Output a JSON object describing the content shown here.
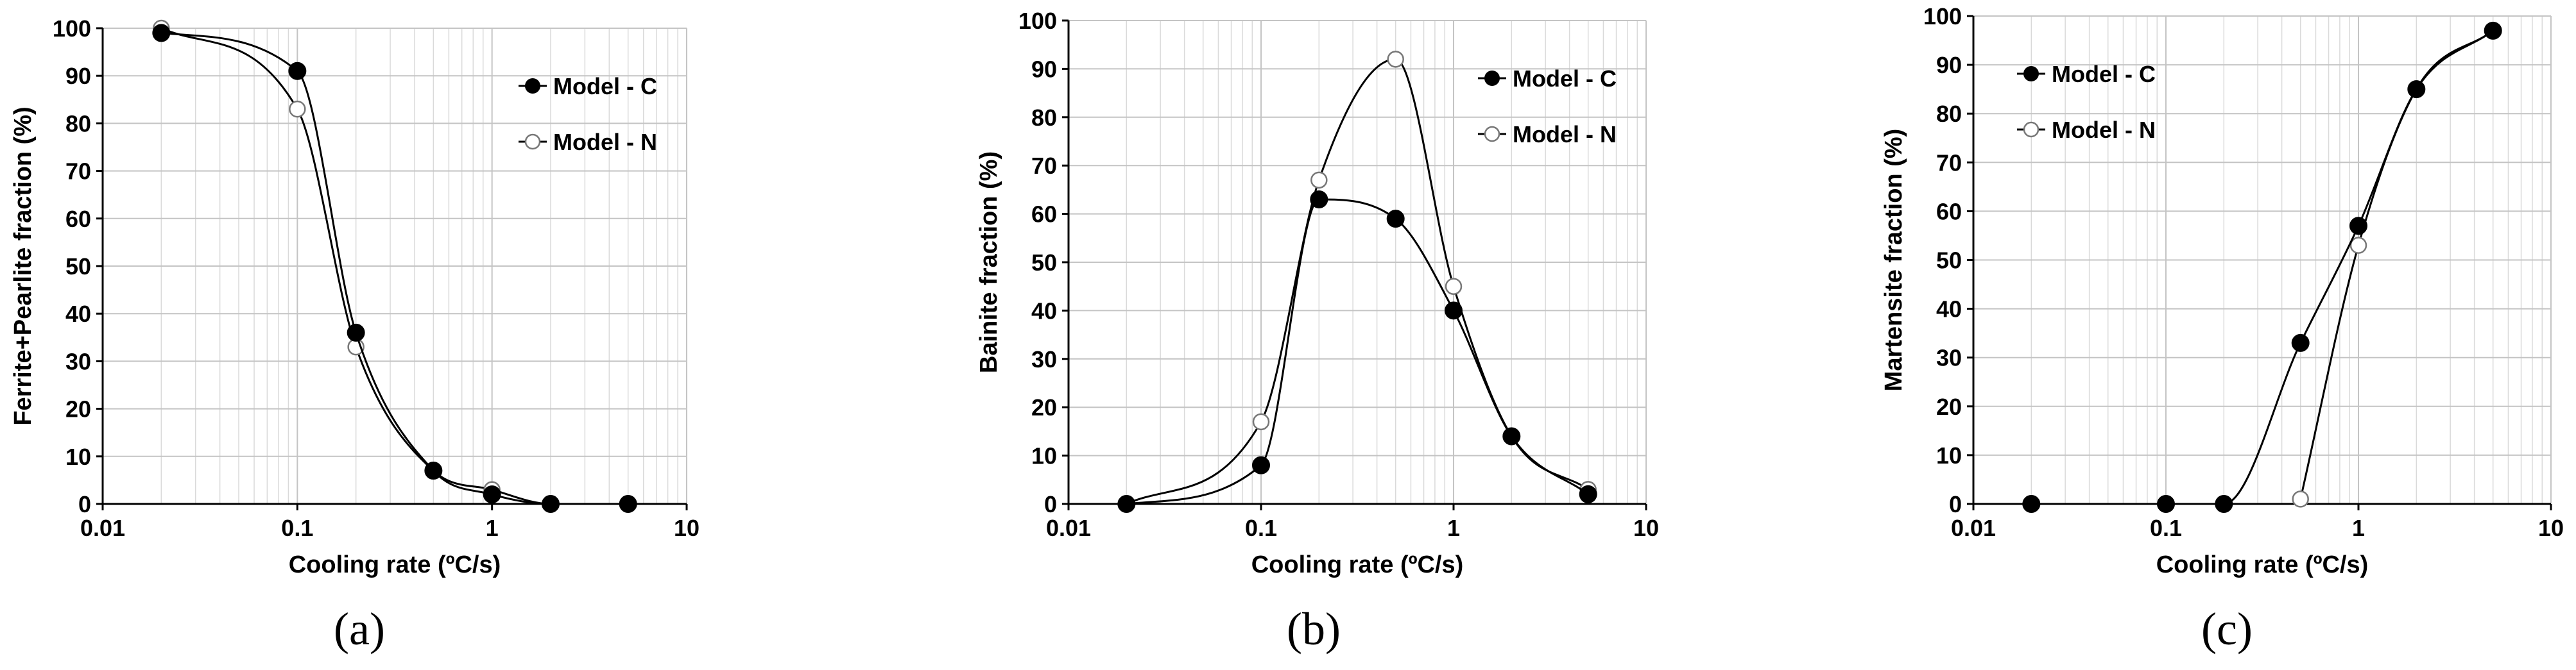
{
  "chart_data": [
    {
      "type": "line",
      "x_scale": "log",
      "caption": "(a)",
      "xlabel": "Cooling rate (ºC/s)",
      "ylabel": "Ferrite+Pearlite fraction (%)",
      "xlim": [
        0.01,
        10
      ],
      "ylim": [
        0,
        100
      ],
      "x_ticks": [
        "0.01",
        "0.1",
        "1",
        "10"
      ],
      "y_ticks": [
        "0",
        "10",
        "20",
        "30",
        "40",
        "50",
        "60",
        "70",
        "80",
        "90",
        "100"
      ],
      "grid": true,
      "legend_position": "top-right",
      "series": [
        {
          "name": "Model - C",
          "marker": "filled",
          "x": [
            0.02,
            0.1,
            0.2,
            0.5,
            1,
            2,
            5
          ],
          "y": [
            99,
            91,
            36,
            7,
            2,
            0,
            0
          ]
        },
        {
          "name": "Model - N",
          "marker": "open",
          "x": [
            0.02,
            0.1,
            0.2,
            0.5,
            1,
            2,
            5
          ],
          "y": [
            100,
            83,
            33,
            7,
            3,
            0,
            0
          ]
        }
      ]
    },
    {
      "type": "line",
      "x_scale": "log",
      "caption": "(b)",
      "xlabel": "Cooling rate (ºC/s)",
      "ylabel": "Bainite fraction (%)",
      "xlim": [
        0.01,
        10
      ],
      "ylim": [
        0,
        100
      ],
      "x_ticks": [
        "0.01",
        "0.1",
        "1",
        "10"
      ],
      "y_ticks": [
        "0",
        "10",
        "20",
        "30",
        "40",
        "50",
        "60",
        "70",
        "80",
        "90",
        "100"
      ],
      "grid": true,
      "legend_position": "top-right",
      "series": [
        {
          "name": "Model - C",
          "marker": "filled",
          "x": [
            0.02,
            0.1,
            0.2,
            0.5,
            1,
            2,
            5
          ],
          "y": [
            0,
            8,
            63,
            59,
            40,
            14,
            2
          ]
        },
        {
          "name": "Model - N",
          "marker": "open",
          "x": [
            0.02,
            0.1,
            0.2,
            0.5,
            1,
            2,
            5
          ],
          "y": [
            0,
            17,
            67,
            92,
            45,
            14,
            3
          ]
        }
      ]
    },
    {
      "type": "line",
      "x_scale": "log",
      "caption": "(c)",
      "xlabel": "Cooling rate (ºC/s)",
      "ylabel": "Martensite fraction (%)",
      "xlim": [
        0.01,
        10
      ],
      "ylim": [
        0,
        100
      ],
      "x_ticks": [
        "0.01",
        "0.1",
        "1",
        "10"
      ],
      "y_ticks": [
        "0",
        "10",
        "20",
        "30",
        "40",
        "50",
        "60",
        "70",
        "80",
        "90",
        "100"
      ],
      "grid": true,
      "legend_position": "top-left",
      "series": [
        {
          "name": "Model - C",
          "marker": "filled",
          "x": [
            0.02,
            0.1,
            0.2,
            0.5,
            1,
            2,
            5
          ],
          "y": [
            0,
            0,
            0,
            33,
            57,
            85,
            97
          ]
        },
        {
          "name": "Model - N",
          "marker": "open",
          "x": [
            0.5,
            1,
            2,
            5
          ],
          "y": [
            1,
            53,
            85,
            97
          ]
        }
      ]
    }
  ]
}
